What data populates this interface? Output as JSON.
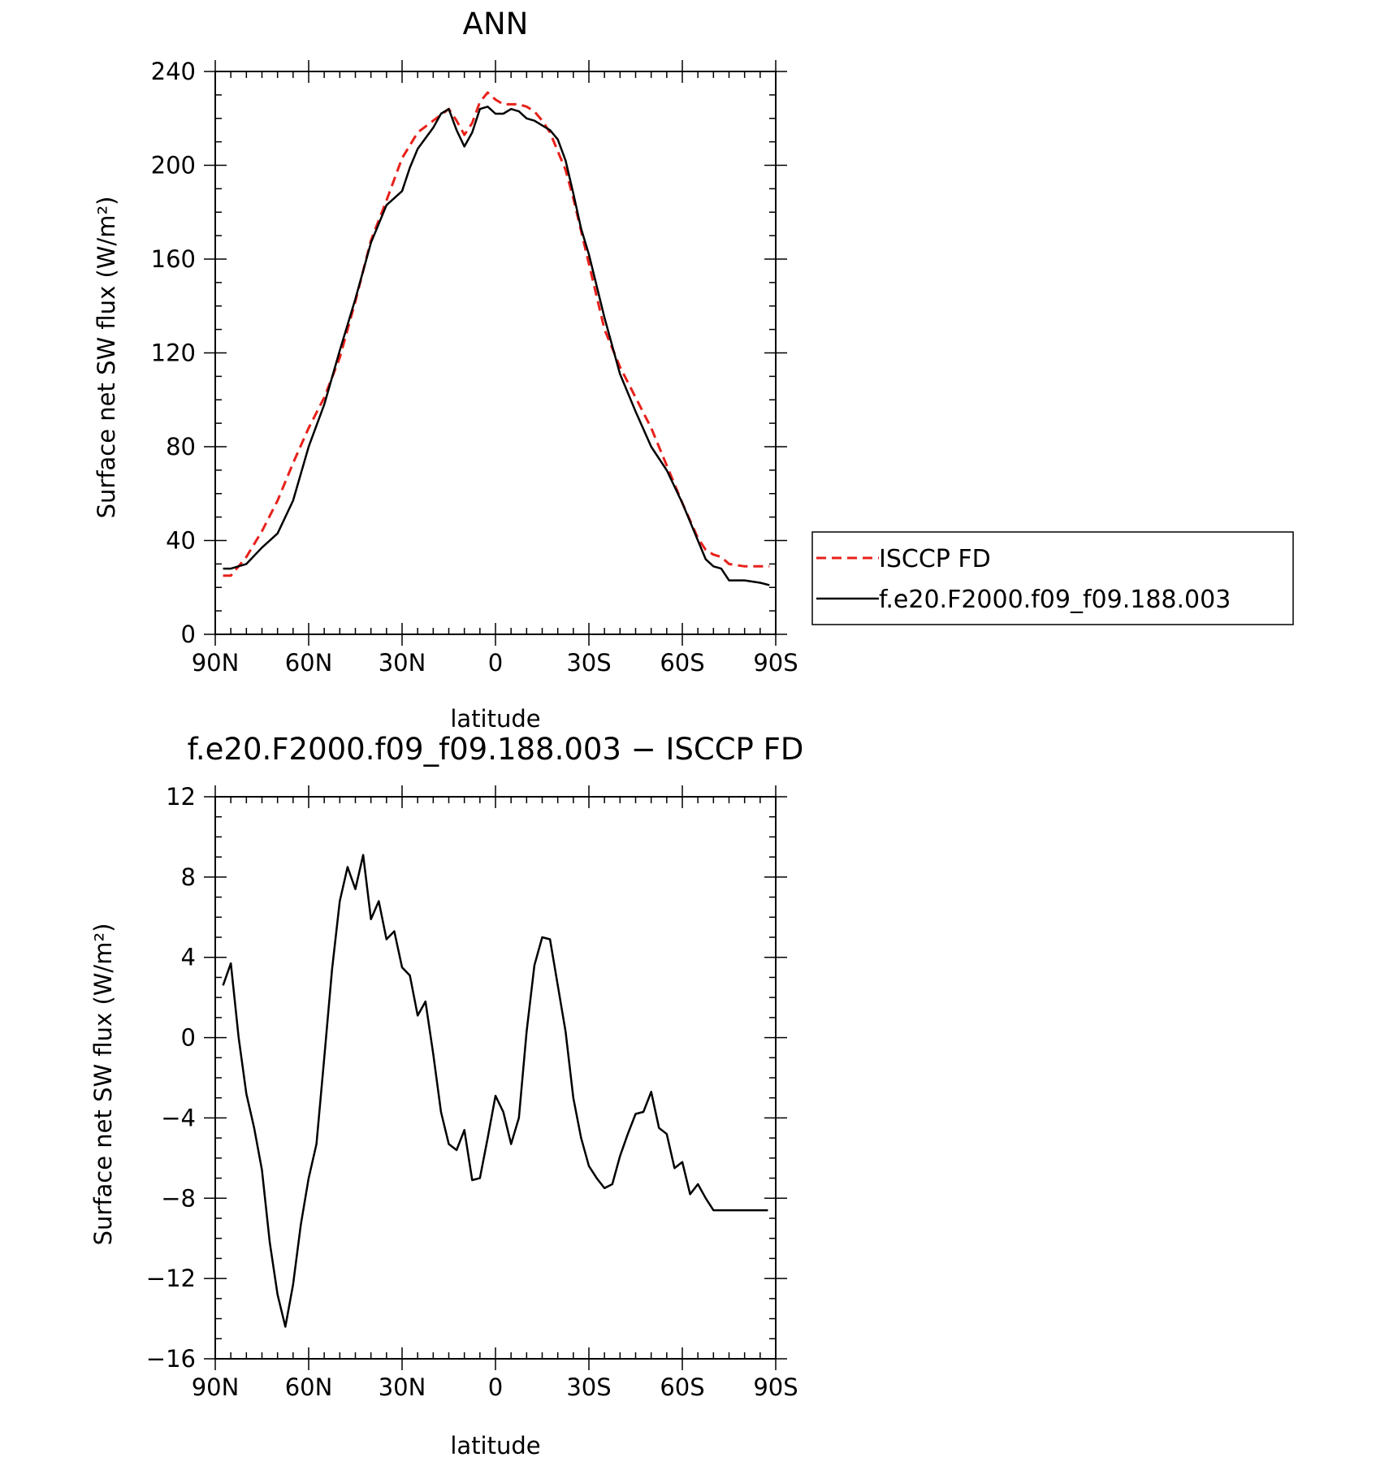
{
  "chart_data": [
    {
      "type": "line",
      "title": "ANN",
      "xlabel": "latitude",
      "ylabel": "Surface net SW flux (W/m²)",
      "xlim": [
        90,
        -90
      ],
      "ylim": [
        0,
        240
      ],
      "x_ticks": [
        {
          "value": 90,
          "label": "90N"
        },
        {
          "value": 60,
          "label": "60N"
        },
        {
          "value": 30,
          "label": "30N"
        },
        {
          "value": 0,
          "label": "0"
        },
        {
          "value": -30,
          "label": "30S"
        },
        {
          "value": -60,
          "label": "60S"
        },
        {
          "value": -90,
          "label": "90S"
        }
      ],
      "y_ticks": [
        0,
        40,
        80,
        120,
        160,
        200,
        240
      ],
      "grid": false,
      "legend_position": "right",
      "series": [
        {
          "name": "ISCCP FD",
          "color": "#e8201a",
          "dash": "dashed",
          "x": [
            87.5,
            85,
            80,
            75,
            70,
            65,
            60,
            55,
            50,
            45,
            40,
            35,
            30,
            25,
            20,
            15,
            12.5,
            10,
            7.5,
            5,
            2.5,
            0,
            -2.5,
            -5,
            -7.5,
            -10,
            -12.5,
            -15,
            -17.5,
            -20,
            -22.5,
            -25,
            -30,
            -35,
            -40,
            -45,
            -50,
            -55,
            -60,
            -65,
            -67.5,
            -70,
            -72.5,
            -75,
            -80,
            -85,
            -88
          ],
          "y": [
            25,
            25,
            33,
            44,
            57,
            73,
            88,
            101,
            118,
            142,
            168,
            185,
            203,
            214,
            219,
            224,
            219,
            213,
            218,
            227,
            231,
            228,
            226,
            226,
            226,
            225,
            223,
            219,
            214,
            206,
            198,
            186,
            158,
            130,
            114,
            101,
            88,
            72,
            56,
            41,
            36,
            34,
            33,
            30,
            29,
            29,
            29
          ]
        },
        {
          "name": "f.e20.F2000.f09_f09.188.003",
          "color": "#000000",
          "dash": "solid",
          "x": [
            87.5,
            85,
            80,
            75,
            70,
            65,
            60,
            55,
            50,
            45,
            40,
            35,
            30,
            27.5,
            25,
            20,
            17.5,
            15,
            12.5,
            10,
            7.5,
            5,
            2.5,
            0,
            -2.5,
            -5,
            -7.5,
            -10,
            -12.5,
            -15,
            -17.5,
            -20,
            -22.5,
            -25,
            -27.5,
            -30,
            -35,
            -40,
            -45,
            -50,
            -55,
            -60,
            -65,
            -67.5,
            -70,
            -72.5,
            -75,
            -80,
            -85,
            -88
          ],
          "y": [
            28,
            28,
            30,
            37,
            43,
            57,
            80,
            98,
            121,
            143,
            167,
            183,
            189,
            199,
            207,
            216,
            222,
            224,
            215,
            208,
            214,
            224,
            225,
            222,
            222,
            224,
            223,
            220,
            219,
            217,
            215,
            211,
            202,
            188,
            173,
            162,
            135,
            111,
            95,
            80,
            70,
            56,
            40,
            32,
            29,
            28,
            23,
            23,
            22,
            21
          ]
        }
      ]
    },
    {
      "type": "line",
      "title": "f.e20.F2000.f09_f09.188.003 − ISCCP FD",
      "xlabel": "latitude",
      "ylabel": "Surface net SW flux (W/m²)",
      "xlim": [
        90,
        -90
      ],
      "ylim": [
        -16,
        12
      ],
      "x_ticks": [
        {
          "value": 90,
          "label": "90N"
        },
        {
          "value": 60,
          "label": "60N"
        },
        {
          "value": 30,
          "label": "30N"
        },
        {
          "value": 0,
          "label": "0"
        },
        {
          "value": -30,
          "label": "30S"
        },
        {
          "value": -60,
          "label": "60S"
        },
        {
          "value": -90,
          "label": "90S"
        }
      ],
      "y_ticks": [
        -16,
        -12,
        -8,
        -4,
        0,
        4,
        8,
        12
      ],
      "grid": false,
      "series": [
        {
          "color": "#000000",
          "dash": "solid",
          "x": [
            87.5,
            85,
            82.5,
            80,
            77.5,
            75,
            72.5,
            70,
            67.5,
            65,
            62.5,
            60,
            57.5,
            55,
            52.5,
            50,
            47.5,
            45,
            42.5,
            40,
            37.5,
            35,
            32.5,
            30,
            27.5,
            25,
            22.5,
            20,
            17.5,
            15,
            12.5,
            10,
            7.5,
            5,
            2.5,
            0,
            -2.5,
            -5,
            -7.5,
            -10,
            -12.5,
            -15,
            -17.5,
            -20,
            -22.5,
            -25,
            -27.5,
            -30,
            -32.5,
            -35,
            -37.5,
            -40,
            -42.5,
            -45,
            -47.5,
            -50,
            -52.5,
            -55,
            -57.5,
            -60,
            -62.5,
            -65,
            -67.5,
            -70,
            -72.5,
            -75,
            -77.5,
            -80,
            -82.5,
            -85,
            -87.5
          ],
          "y": [
            2.6,
            3.7,
            0,
            -2.8,
            -4.5,
            -6.6,
            -10.2,
            -12.8,
            -14.4,
            -12.3,
            -9.3,
            -7,
            -5.3,
            -1,
            3.4,
            6.8,
            8.5,
            7.4,
            9.1,
            5.9,
            6.8,
            4.9,
            5.3,
            3.5,
            3.1,
            1.1,
            1.8,
            -0.8,
            -3.7,
            -5.3,
            -5.6,
            -4.6,
            -7.1,
            -7,
            -5,
            -2.9,
            -3.7,
            -5.3,
            -4,
            0.3,
            3.6,
            5,
            4.9,
            2.6,
            0.3,
            -3,
            -5,
            -6.4,
            -7,
            -7.5,
            -7.3,
            -5.9,
            -4.8,
            -3.8,
            -3.7,
            -2.7,
            -4.5,
            -4.8,
            -6.5,
            -6.2,
            -7.8,
            -7.3,
            -8,
            -8.6,
            -8.6,
            -8.6,
            -8.6,
            -8.6,
            -8.6,
            -8.6,
            -8.6
          ]
        }
      ]
    }
  ],
  "legend": {
    "items": [
      {
        "label": "ISCCP FD",
        "color": "#e8201a",
        "dash": "dashed"
      },
      {
        "label": "f.e20.F2000.f09_f09.188.003",
        "color": "#000000",
        "dash": "solid"
      }
    ]
  }
}
